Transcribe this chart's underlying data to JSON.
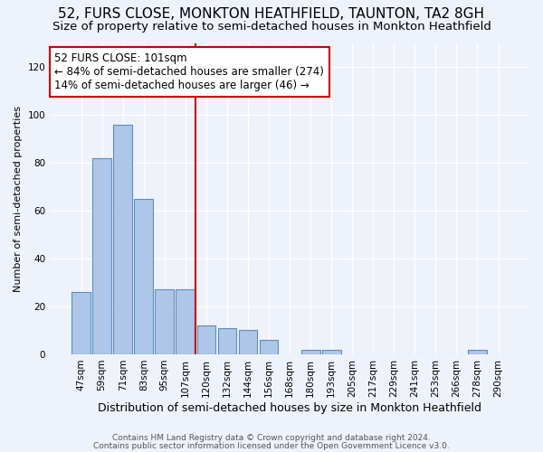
{
  "title": "52, FURS CLOSE, MONKTON HEATHFIELD, TAUNTON, TA2 8GH",
  "subtitle": "Size of property relative to semi-detached houses in Monkton Heathfield",
  "xlabel": "Distribution of semi-detached houses by size in Monkton Heathfield",
  "ylabel": "Number of semi-detached properties",
  "categories": [
    "47sqm",
    "59sqm",
    "71sqm",
    "83sqm",
    "95sqm",
    "107sqm",
    "120sqm",
    "132sqm",
    "144sqm",
    "156sqm",
    "168sqm",
    "180sqm",
    "193sqm",
    "205sqm",
    "217sqm",
    "229sqm",
    "241sqm",
    "253sqm",
    "266sqm",
    "278sqm",
    "290sqm"
  ],
  "values": [
    26,
    82,
    96,
    65,
    27,
    27,
    12,
    11,
    10,
    6,
    0,
    2,
    2,
    0,
    0,
    0,
    0,
    0,
    0,
    2,
    0
  ],
  "bar_color": "#aec6e8",
  "bar_edge_color": "#5a8fc0",
  "vline_x": 5.5,
  "vline_color": "#cc0000",
  "annotation_line1": "52 FURS CLOSE: 101sqm",
  "annotation_line2": "← 84% of semi-detached houses are smaller (274)",
  "annotation_line3": "14% of semi-detached houses are larger (46) →",
  "annotation_box_color": "#ffffff",
  "annotation_box_edge": "#cc0000",
  "ylim": [
    0,
    130
  ],
  "yticks": [
    0,
    20,
    40,
    60,
    80,
    100,
    120
  ],
  "footer1": "Contains HM Land Registry data © Crown copyright and database right 2024.",
  "footer2": "Contains public sector information licensed under the Open Government Licence v3.0.",
  "background_color": "#eef2fb",
  "grid_color": "#ffffff",
  "title_fontsize": 11,
  "subtitle_fontsize": 9.5,
  "xlabel_fontsize": 9,
  "ylabel_fontsize": 8,
  "tick_fontsize": 7.5,
  "annotation_fontsize": 8.5,
  "footer_fontsize": 6.5
}
